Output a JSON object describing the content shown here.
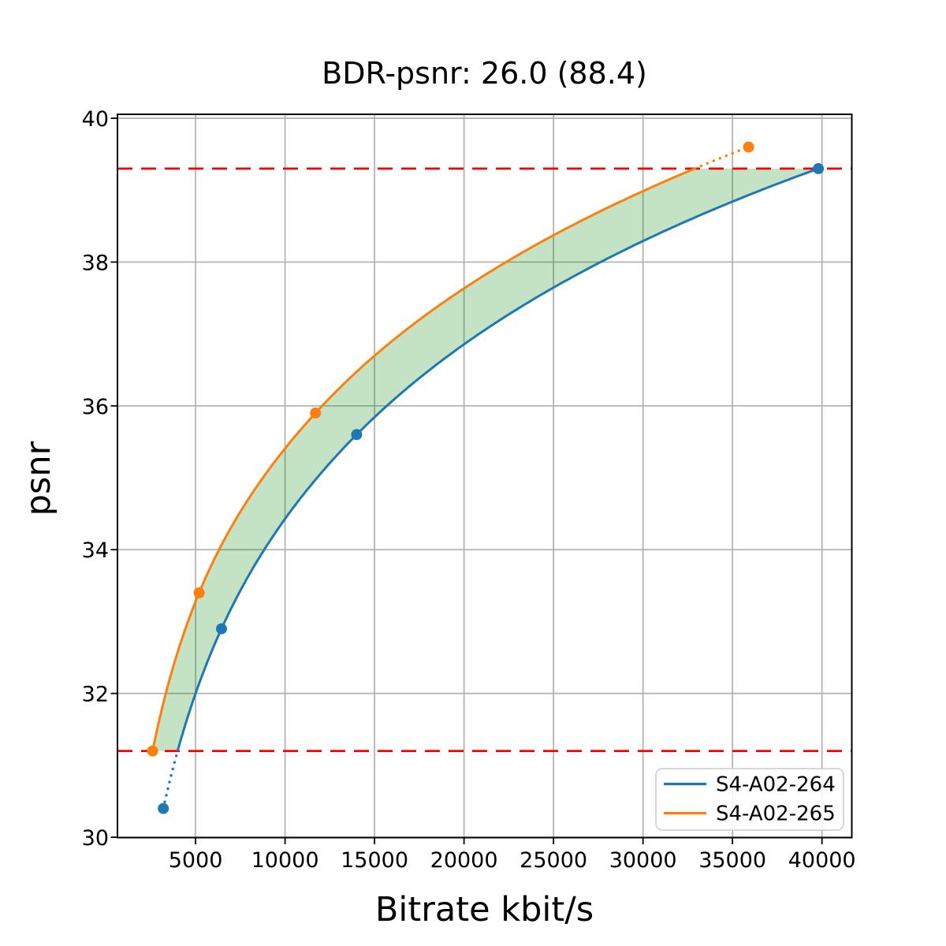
{
  "title": "BDR-psnr: 26.0 (88.4)",
  "xlabel": "Bitrate kbit/s",
  "ylabel": "psnr",
  "chart_data": {
    "type": "line",
    "xlabel": "Bitrate kbit/s",
    "ylabel": "psnr",
    "title": "BDR-psnr: 26.0 (88.4)",
    "bdr_value": "26.0",
    "bdr_secondary": "88.4",
    "series": [
      {
        "name": "S4-A02-264",
        "color": "#1f77b4",
        "points": [
          [
            3200,
            30.4
          ],
          [
            6450,
            32.9
          ],
          [
            14000,
            35.6
          ],
          [
            39800,
            39.3
          ]
        ]
      },
      {
        "name": "S4-A02-265",
        "color": "#ff7f0e",
        "points": [
          [
            2600,
            31.2
          ],
          [
            5200,
            33.4
          ],
          [
            11700,
            35.9
          ],
          [
            35900,
            39.6
          ]
        ]
      }
    ],
    "x_ticks": [
      5000,
      10000,
      15000,
      20000,
      25000,
      30000,
      35000,
      40000
    ],
    "y_ticks": [
      30,
      32,
      34,
      36,
      38,
      40
    ],
    "xlim": [
      637,
      41666
    ],
    "ylim": [
      29.995,
      40.055
    ],
    "bd_bounds": {
      "lower": 31.2,
      "upper": 39.3,
      "line_color": "#ff0000"
    },
    "fill_color": "rgba(0,128,0,0.23)",
    "grid": true,
    "grid_color": "#b0b0b0",
    "legend_position": "lower right",
    "interpolation": "pchip of psnr vs log10(bitrate)"
  },
  "legend": {
    "items": [
      {
        "label": "S4-A02-264",
        "color": "#1f77b4"
      },
      {
        "label": "S4-A02-265",
        "color": "#ff7f0e"
      }
    ]
  }
}
